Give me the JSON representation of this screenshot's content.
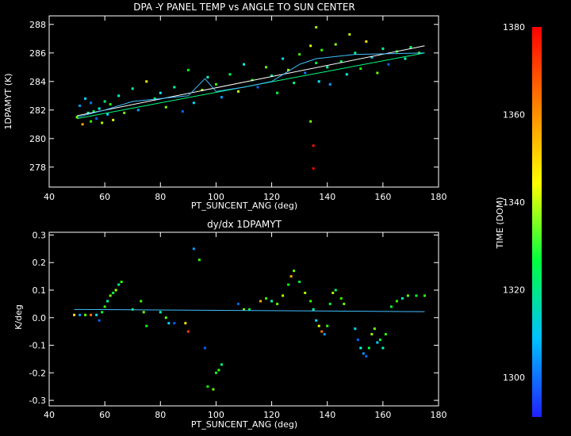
{
  "chart_data": [
    {
      "type": "scatter",
      "title": "DPA -Y PANEL TEMP vs ANGLE TO SUN CENTER",
      "xlabel": "PT_SUNCENT_ANG (deg)",
      "ylabel": "1DPAMYT (K)",
      "xlim": [
        40,
        180
      ],
      "ylim": [
        276.6,
        288.6
      ],
      "xticks": [
        "40",
        "60",
        "80",
        "100",
        "120",
        "140",
        "160",
        "180"
      ],
      "yticks": [
        "278",
        "280",
        "282",
        "284",
        "286",
        "288"
      ],
      "color_by": "TIME (DOM)",
      "points": [
        {
          "x": 50,
          "y": 281.5,
          "t": 1345
        },
        {
          "x": 51,
          "y": 282.3,
          "t": 1305
        },
        {
          "x": 52,
          "y": 281.0,
          "t": 1365
        },
        {
          "x": 53,
          "y": 282.8,
          "t": 1310
        },
        {
          "x": 54,
          "y": 281.8,
          "t": 1320
        },
        {
          "x": 55,
          "y": 281.2,
          "t": 1340
        },
        {
          "x": 55,
          "y": 282.5,
          "t": 1302
        },
        {
          "x": 56,
          "y": 281.9,
          "t": 1330
        },
        {
          "x": 57,
          "y": 281.4,
          "t": 1300
        },
        {
          "x": 58,
          "y": 282.1,
          "t": 1315
        },
        {
          "x": 59,
          "y": 281.1,
          "t": 1350
        },
        {
          "x": 60,
          "y": 282.6,
          "t": 1325
        },
        {
          "x": 61,
          "y": 281.7,
          "t": 1310
        },
        {
          "x": 62,
          "y": 282.4,
          "t": 1338
        },
        {
          "x": 63,
          "y": 281.3,
          "t": 1355
        },
        {
          "x": 65,
          "y": 283.0,
          "t": 1318
        },
        {
          "x": 67,
          "y": 281.8,
          "t": 1345
        },
        {
          "x": 70,
          "y": 283.5,
          "t": 1320
        },
        {
          "x": 72,
          "y": 282.0,
          "t": 1305
        },
        {
          "x": 75,
          "y": 284.0,
          "t": 1360
        },
        {
          "x": 78,
          "y": 282.8,
          "t": 1330
        },
        {
          "x": 80,
          "y": 283.2,
          "t": 1312
        },
        {
          "x": 82,
          "y": 282.2,
          "t": 1345
        },
        {
          "x": 85,
          "y": 283.6,
          "t": 1322
        },
        {
          "x": 88,
          "y": 281.9,
          "t": 1300
        },
        {
          "x": 90,
          "y": 284.8,
          "t": 1335
        },
        {
          "x": 92,
          "y": 282.5,
          "t": 1310
        },
        {
          "x": 95,
          "y": 283.4,
          "t": 1350
        },
        {
          "x": 97,
          "y": 284.3,
          "t": 1318
        },
        {
          "x": 100,
          "y": 283.8,
          "t": 1340
        },
        {
          "x": 102,
          "y": 282.9,
          "t": 1305
        },
        {
          "x": 105,
          "y": 284.5,
          "t": 1328
        },
        {
          "x": 108,
          "y": 283.3,
          "t": 1352
        },
        {
          "x": 110,
          "y": 285.2,
          "t": 1315
        },
        {
          "x": 113,
          "y": 284.1,
          "t": 1338
        },
        {
          "x": 115,
          "y": 283.6,
          "t": 1300
        },
        {
          "x": 118,
          "y": 285.0,
          "t": 1345
        },
        {
          "x": 120,
          "y": 284.4,
          "t": 1320
        },
        {
          "x": 122,
          "y": 283.2,
          "t": 1330
        },
        {
          "x": 124,
          "y": 285.6,
          "t": 1310
        },
        {
          "x": 126,
          "y": 284.8,
          "t": 1350
        },
        {
          "x": 128,
          "y": 283.9,
          "t": 1325
        },
        {
          "x": 130,
          "y": 285.9,
          "t": 1340
        },
        {
          "x": 132,
          "y": 284.6,
          "t": 1302
        },
        {
          "x": 134,
          "y": 286.5,
          "t": 1355
        },
        {
          "x": 134,
          "y": 281.2,
          "t": 1345
        },
        {
          "x": 135,
          "y": 277.9,
          "t": 1380
        },
        {
          "x": 135,
          "y": 279.5,
          "t": 1378
        },
        {
          "x": 136,
          "y": 287.8,
          "t": 1350
        },
        {
          "x": 136,
          "y": 285.3,
          "t": 1330
        },
        {
          "x": 137,
          "y": 284.0,
          "t": 1312
        },
        {
          "x": 138,
          "y": 286.2,
          "t": 1340
        },
        {
          "x": 140,
          "y": 285.0,
          "t": 1320
        },
        {
          "x": 141,
          "y": 283.8,
          "t": 1305
        },
        {
          "x": 143,
          "y": 286.6,
          "t": 1348
        },
        {
          "x": 145,
          "y": 285.4,
          "t": 1330
        },
        {
          "x": 147,
          "y": 284.5,
          "t": 1315
        },
        {
          "x": 148,
          "y": 287.3,
          "t": 1352
        },
        {
          "x": 150,
          "y": 286.0,
          "t": 1325
        },
        {
          "x": 152,
          "y": 284.9,
          "t": 1338
        },
        {
          "x": 154,
          "y": 286.8,
          "t": 1360
        },
        {
          "x": 156,
          "y": 285.7,
          "t": 1310
        },
        {
          "x": 158,
          "y": 284.6,
          "t": 1345
        },
        {
          "x": 160,
          "y": 286.3,
          "t": 1322
        },
        {
          "x": 162,
          "y": 285.2,
          "t": 1300
        },
        {
          "x": 165,
          "y": 286.1,
          "t": 1335
        },
        {
          "x": 168,
          "y": 285.6,
          "t": 1318
        },
        {
          "x": 170,
          "y": 286.4,
          "t": 1328
        },
        {
          "x": 173,
          "y": 286.0,
          "t": 1345
        }
      ],
      "fits": [
        {
          "color": "#ffffff",
          "points": [
            [
              50,
              281.6
            ],
            [
              175,
              286.5
            ]
          ]
        },
        {
          "color": "#00ff80",
          "points": [
            [
              50,
              281.4
            ],
            [
              175,
              286.0
            ]
          ]
        },
        {
          "color": "#40c0ff",
          "points": [
            [
              50,
              281.5
            ],
            [
              60,
              282.0
            ],
            [
              70,
              282.6
            ],
            [
              80,
              282.8
            ],
            [
              90,
              283.0
            ],
            [
              96,
              284.2
            ],
            [
              100,
              283.3
            ],
            [
              110,
              283.6
            ],
            [
              120,
              284.0
            ],
            [
              130,
              285.2
            ],
            [
              136,
              285.6
            ],
            [
              150,
              285.9
            ],
            [
              175,
              286.0
            ]
          ]
        }
      ]
    },
    {
      "type": "scatter",
      "title": "dy/dx 1DPAMYT",
      "xlabel": "PT_SUNCENT_ANG (deg)",
      "ylabel": "K/deg",
      "xlim": [
        40,
        180
      ],
      "ylim": [
        -0.32,
        0.31
      ],
      "xticks": [
        "40",
        "60",
        "80",
        "100",
        "120",
        "140",
        "160",
        "180"
      ],
      "yticks": [
        "-0.3",
        "-0.2",
        "-0.1",
        "0.0",
        "0.1",
        "0.2",
        "0.3"
      ],
      "color_by": "TIME (DOM)",
      "points": [
        {
          "x": 49,
          "y": 0.01,
          "t": 1360
        },
        {
          "x": 51,
          "y": 0.01,
          "t": 1305
        },
        {
          "x": 53,
          "y": 0.01,
          "t": 1345
        },
        {
          "x": 55,
          "y": 0.01,
          "t": 1370
        },
        {
          "x": 57,
          "y": 0.01,
          "t": 1310
        },
        {
          "x": 58,
          "y": -0.01,
          "t": 1300
        },
        {
          "x": 59,
          "y": 0.02,
          "t": 1330
        },
        {
          "x": 60,
          "y": 0.04,
          "t": 1340
        },
        {
          "x": 61,
          "y": 0.06,
          "t": 1320
        },
        {
          "x": 62,
          "y": 0.08,
          "t": 1345
        },
        {
          "x": 63,
          "y": 0.09,
          "t": 1330
        },
        {
          "x": 64,
          "y": 0.1,
          "t": 1350
        },
        {
          "x": 65,
          "y": 0.12,
          "t": 1325
        },
        {
          "x": 66,
          "y": 0.13,
          "t": 1340
        },
        {
          "x": 70,
          "y": 0.03,
          "t": 1330
        },
        {
          "x": 73,
          "y": 0.06,
          "t": 1340
        },
        {
          "x": 74,
          "y": 0.02,
          "t": 1345
        },
        {
          "x": 75,
          "y": -0.03,
          "t": 1335
        },
        {
          "x": 80,
          "y": 0.02,
          "t": 1320
        },
        {
          "x": 82,
          "y": 0.0,
          "t": 1345
        },
        {
          "x": 83,
          "y": -0.02,
          "t": 1310
        },
        {
          "x": 85,
          "y": -0.02,
          "t": 1300
        },
        {
          "x": 89,
          "y": -0.02,
          "t": 1360
        },
        {
          "x": 90,
          "y": -0.05,
          "t": 1375
        },
        {
          "x": 92,
          "y": 0.25,
          "t": 1305
        },
        {
          "x": 94,
          "y": 0.21,
          "t": 1340
        },
        {
          "x": 96,
          "y": -0.11,
          "t": 1300
        },
        {
          "x": 97,
          "y": -0.25,
          "t": 1335
        },
        {
          "x": 99,
          "y": -0.26,
          "t": 1345
        },
        {
          "x": 100,
          "y": -0.2,
          "t": 1330
        },
        {
          "x": 101,
          "y": -0.19,
          "t": 1340
        },
        {
          "x": 102,
          "y": -0.17,
          "t": 1325
        },
        {
          "x": 108,
          "y": 0.05,
          "t": 1300
        },
        {
          "x": 110,
          "y": 0.03,
          "t": 1345
        },
        {
          "x": 112,
          "y": 0.03,
          "t": 1330
        },
        {
          "x": 116,
          "y": 0.06,
          "t": 1365
        },
        {
          "x": 118,
          "y": 0.07,
          "t": 1340
        },
        {
          "x": 120,
          "y": 0.06,
          "t": 1320
        },
        {
          "x": 122,
          "y": 0.05,
          "t": 1345
        },
        {
          "x": 124,
          "y": 0.08,
          "t": 1350
        },
        {
          "x": 126,
          "y": 0.12,
          "t": 1335
        },
        {
          "x": 127,
          "y": 0.15,
          "t": 1365
        },
        {
          "x": 128,
          "y": 0.17,
          "t": 1345
        },
        {
          "x": 130,
          "y": 0.13,
          "t": 1330
        },
        {
          "x": 132,
          "y": 0.09,
          "t": 1350
        },
        {
          "x": 134,
          "y": 0.06,
          "t": 1340
        },
        {
          "x": 135,
          "y": 0.03,
          "t": 1320
        },
        {
          "x": 136,
          "y": -0.01,
          "t": 1310
        },
        {
          "x": 137,
          "y": -0.03,
          "t": 1355
        },
        {
          "x": 138,
          "y": -0.05,
          "t": 1370
        },
        {
          "x": 139,
          "y": -0.06,
          "t": 1305
        },
        {
          "x": 140,
          "y": -0.03,
          "t": 1340
        },
        {
          "x": 141,
          "y": 0.05,
          "t": 1330
        },
        {
          "x": 142,
          "y": 0.09,
          "t": 1350
        },
        {
          "x": 143,
          "y": 0.1,
          "t": 1325
        },
        {
          "x": 145,
          "y": 0.07,
          "t": 1340
        },
        {
          "x": 146,
          "y": 0.05,
          "t": 1345
        },
        {
          "x": 150,
          "y": -0.04,
          "t": 1310
        },
        {
          "x": 151,
          "y": -0.08,
          "t": 1300
        },
        {
          "x": 152,
          "y": -0.11,
          "t": 1315
        },
        {
          "x": 153,
          "y": -0.13,
          "t": 1305
        },
        {
          "x": 154,
          "y": -0.14,
          "t": 1300
        },
        {
          "x": 155,
          "y": -0.11,
          "t": 1330
        },
        {
          "x": 156,
          "y": -0.06,
          "t": 1350
        },
        {
          "x": 157,
          "y": -0.04,
          "t": 1345
        },
        {
          "x": 158,
          "y": -0.09,
          "t": 1310
        },
        {
          "x": 159,
          "y": -0.08,
          "t": 1330
        },
        {
          "x": 160,
          "y": -0.11,
          "t": 1320
        },
        {
          "x": 161,
          "y": -0.06,
          "t": 1340
        },
        {
          "x": 163,
          "y": 0.04,
          "t": 1330
        },
        {
          "x": 165,
          "y": 0.06,
          "t": 1340
        },
        {
          "x": 167,
          "y": 0.07,
          "t": 1320
        },
        {
          "x": 169,
          "y": 0.08,
          "t": 1345
        },
        {
          "x": 172,
          "y": 0.08,
          "t": 1330
        },
        {
          "x": 175,
          "y": 0.08,
          "t": 1340
        }
      ],
      "fits": [
        {
          "color": "#40c0ff",
          "points": [
            [
              49,
              0.03
            ],
            [
              175,
              0.022
            ]
          ]
        }
      ]
    }
  ],
  "colorbar": {
    "label": "TIME (DOM)",
    "range": [
      1291,
      1380
    ],
    "ticks": [
      "1300",
      "1320",
      "1340",
      "1360",
      "1380"
    ],
    "tick_values": [
      1300,
      1320,
      1340,
      1360,
      1380
    ]
  }
}
